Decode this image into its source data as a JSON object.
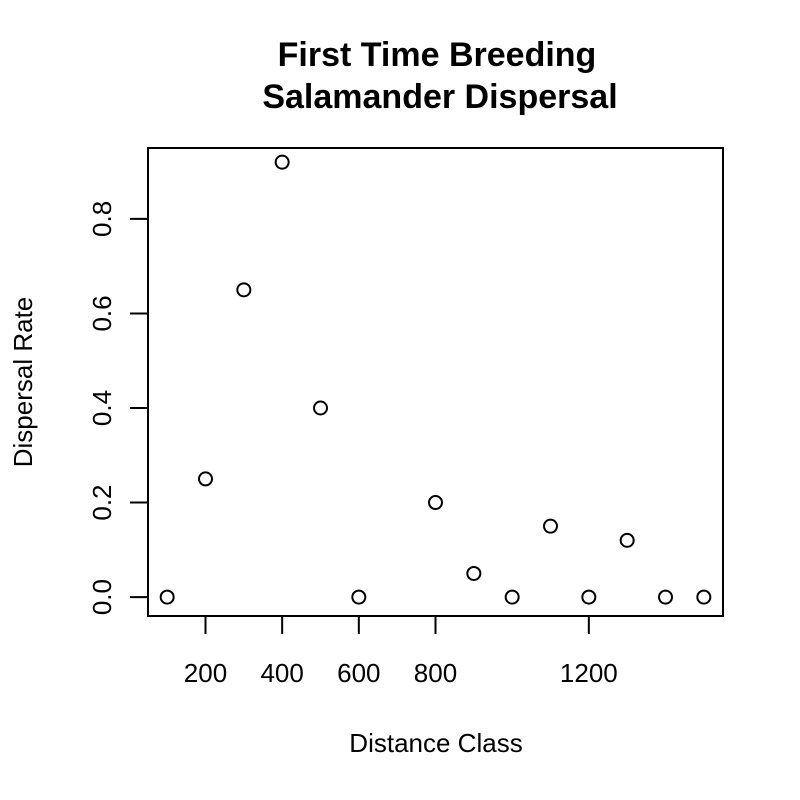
{
  "chart_data": {
    "type": "scatter",
    "title_line1": "First Time Breeding",
    "title_line2": "Salamander Dispersal",
    "xlabel": "Distance Class",
    "ylabel": "Dispersal Rate",
    "x_ticks": [
      200,
      400,
      600,
      800,
      1200
    ],
    "x_tick_labels": [
      "200",
      "400",
      "600",
      "800",
      "1200"
    ],
    "y_ticks": [
      0.0,
      0.2,
      0.4,
      0.6,
      0.8
    ],
    "y_tick_labels": [
      "0.0",
      "0.2",
      "0.4",
      "0.6",
      "0.8"
    ],
    "xlim": [
      50,
      1550
    ],
    "ylim": [
      -0.04,
      0.95
    ],
    "grid": false,
    "legend": "none",
    "points": [
      {
        "x": 100,
        "y": 0.0
      },
      {
        "x": 200,
        "y": 0.25
      },
      {
        "x": 300,
        "y": 0.65
      },
      {
        "x": 400,
        "y": 0.92
      },
      {
        "x": 500,
        "y": 0.4
      },
      {
        "x": 600,
        "y": 0.0
      },
      {
        "x": 800,
        "y": 0.2
      },
      {
        "x": 900,
        "y": 0.05
      },
      {
        "x": 1000,
        "y": 0.0
      },
      {
        "x": 1100,
        "y": 0.15
      },
      {
        "x": 1200,
        "y": 0.0
      },
      {
        "x": 1300,
        "y": 0.12
      },
      {
        "x": 1400,
        "y": 0.0
      },
      {
        "x": 1500,
        "y": 0.0
      }
    ],
    "point_color": "#000000"
  }
}
